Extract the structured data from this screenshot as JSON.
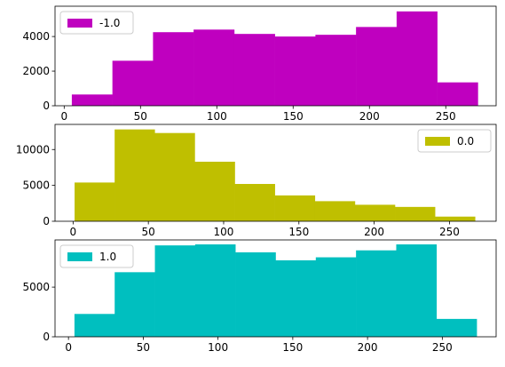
{
  "chart_data": [
    {
      "type": "bar",
      "bin_edges": [
        5,
        31.6,
        58.2,
        84.8,
        111.4,
        138,
        164.6,
        191.2,
        217.8,
        244.4,
        271
      ],
      "values": [
        650,
        2600,
        4250,
        4400,
        4150,
        4000,
        4100,
        4550,
        5450,
        1350
      ],
      "color": "#bf00bf",
      "legend": "-1.0",
      "legend_position": "upper-left",
      "xlim": [
        -6,
        283
      ],
      "ylim": [
        0,
        5750
      ],
      "xticks": [
        0,
        50,
        100,
        150,
        200,
        250
      ],
      "yticks": [
        0,
        2000,
        4000
      ],
      "xtick_labels": [
        "0",
        "50",
        "100",
        "150",
        "200",
        "250"
      ],
      "ytick_labels": [
        "0",
        "2000",
        "4000"
      ],
      "grid": false
    },
    {
      "type": "bar",
      "bin_edges": [
        1,
        27.6,
        54.2,
        80.8,
        107.4,
        134,
        160.6,
        187.2,
        213.8,
        240.4,
        267
      ],
      "values": [
        5400,
        12800,
        12300,
        8300,
        5200,
        3600,
        2800,
        2300,
        2000,
        650
      ],
      "color": "#bfbf00",
      "legend": "0.0",
      "legend_position": "upper-right",
      "xlim": [
        -12,
        281
      ],
      "ylim": [
        0,
        13500
      ],
      "xticks": [
        0,
        50,
        100,
        150,
        200,
        250
      ],
      "yticks": [
        0,
        5000,
        10000
      ],
      "xtick_labels": [
        "0",
        "50",
        "100",
        "150",
        "200",
        "250"
      ],
      "ytick_labels": [
        "0",
        "5000",
        "10000"
      ],
      "grid": false
    },
    {
      "type": "bar",
      "bin_edges": [
        4,
        30.9,
        57.8,
        84.7,
        111.6,
        138.5,
        165.4,
        192.3,
        219.2,
        246.1,
        273
      ],
      "values": [
        2300,
        6500,
        9200,
        9300,
        8500,
        7700,
        8000,
        8700,
        9300,
        1800
      ],
      "color": "#00bfbf",
      "legend": "1.0",
      "legend_position": "upper-left",
      "xlim": [
        -9,
        286
      ],
      "ylim": [
        0,
        9750
      ],
      "xticks": [
        0,
        50,
        100,
        150,
        200,
        250
      ],
      "yticks": [
        0,
        5000
      ],
      "xtick_labels": [
        "0",
        "50",
        "100",
        "150",
        "200",
        "250"
      ],
      "ytick_labels": [
        "0",
        "5000"
      ],
      "grid": false
    }
  ]
}
